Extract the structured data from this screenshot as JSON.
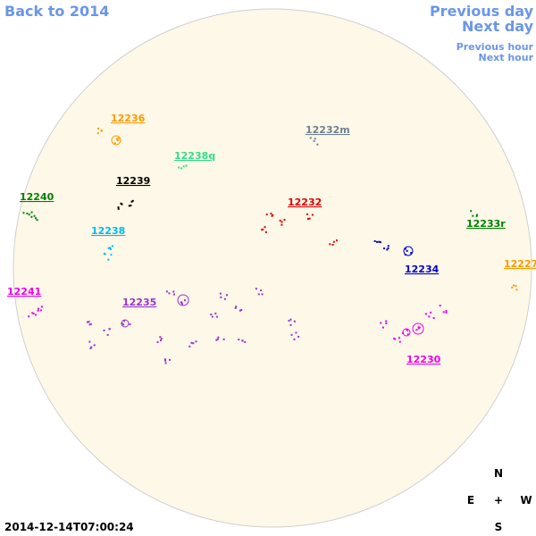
{
  "nav": {
    "back": "Back to 2014",
    "previous_day": "Previous day",
    "next_day": "Next day",
    "previous_hour": "Previous hour",
    "next_hour": "Next hour"
  },
  "regions": [
    {
      "label": "12236",
      "color": "#ff9900"
    },
    {
      "label": "12232m",
      "color": "#708090"
    },
    {
      "label": "12238q",
      "color": "#33dd88"
    },
    {
      "label": "12239",
      "color": "#000000"
    },
    {
      "label": "12240",
      "color": "#008000"
    },
    {
      "label": "12232",
      "color": "#dd0000"
    },
    {
      "label": "12233r",
      "color": "#008000"
    },
    {
      "label": "12238",
      "color": "#00bbee"
    },
    {
      "label": "12234",
      "color": "#0000cc"
    },
    {
      "label": "12227",
      "color": "#ff9900"
    },
    {
      "label": "12241",
      "color": "#ee00ee"
    },
    {
      "label": "12235",
      "color": "#9933cc"
    },
    {
      "label": "12230",
      "color": "#ee00ee"
    }
  ],
  "compass": {
    "north": "N",
    "east": "E",
    "center": "+",
    "west": "W",
    "south": "S"
  },
  "timestamp": "2014-12-14T07:00:24"
}
